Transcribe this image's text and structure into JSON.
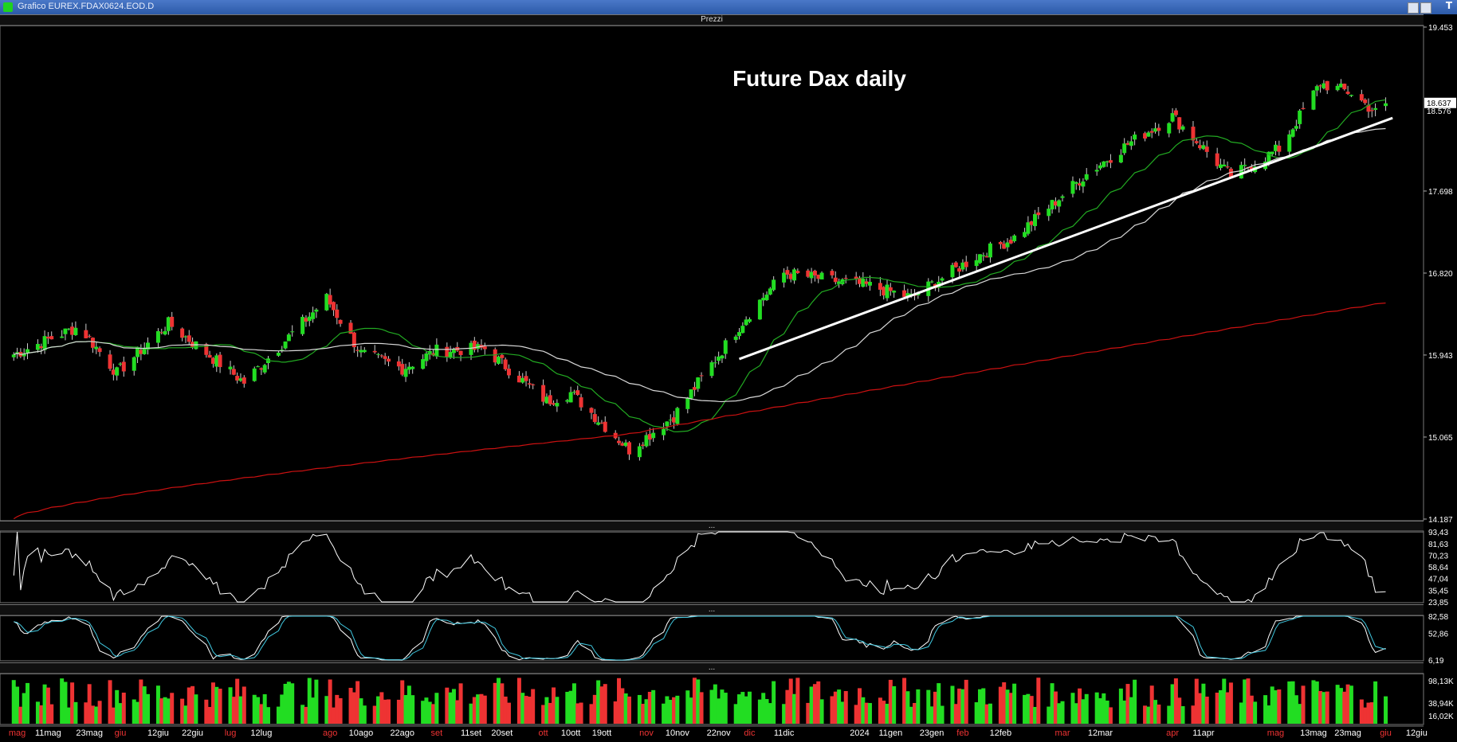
{
  "window": {
    "title": "Grafico EUREX.FDAX0624.EOD.D",
    "toolbar_label": "T"
  },
  "panels": {
    "price_title": "Prezzi",
    "sep1": "...",
    "sep2": "...",
    "sep3": "..."
  },
  "colors": {
    "up": "#22dd22",
    "down": "#ee3333",
    "ma_short": "#22aa22",
    "ma_mid": "#d8d8d8",
    "ma_long": "#cc1111",
    "trendline": "#ffffff",
    "stoch_k": "#ffffff",
    "stoch_d": "#40c8e0",
    "background": "#000000"
  },
  "chart_data": [
    {
      "type": "candlestick",
      "title": "Future Dax daily",
      "ylim": [
        14187,
        19453
      ],
      "y_ticks": [
        "19.453",
        "17.698",
        "16.820",
        "15.943",
        "15.065",
        "14.187"
      ],
      "price_labels": [
        "18.637",
        "18.576"
      ],
      "x_labels": [
        "mag",
        "11mag",
        "23mag",
        "giu",
        "12giu",
        "22giu",
        "lug",
        "12lug",
        "ago",
        "10ago",
        "22ago",
        "set",
        "11set",
        "20set",
        "ott",
        "10ott",
        "19ott",
        "nov",
        "10nov",
        "22nov",
        "dic",
        "11dic",
        "2024",
        "11gen",
        "23gen",
        "feb",
        "12feb",
        "mar",
        "12mar",
        "apr",
        "11apr",
        "mag",
        "13mag",
        "23mag",
        "giu",
        "12giu"
      ],
      "month_labels": [
        "mag",
        "giu",
        "lug",
        "ago",
        "set",
        "ott",
        "nov",
        "dic",
        "feb",
        "mar",
        "apr",
        "mag",
        "giu"
      ],
      "anchors": [
        {
          "date": "2023-05-01",
          "close": 15950
        },
        {
          "date": "2023-05-20",
          "close": 16250
        },
        {
          "date": "2023-05-31",
          "close": 15750
        },
        {
          "date": "2023-06-15",
          "close": 16280
        },
        {
          "date": "2023-07-07",
          "close": 15650
        },
        {
          "date": "2023-07-31",
          "close": 16550
        },
        {
          "date": "2023-08-10",
          "close": 15960
        },
        {
          "date": "2023-08-22",
          "close": 15800
        },
        {
          "date": "2023-09-01",
          "close": 15990
        },
        {
          "date": "2023-09-15",
          "close": 16010
        },
        {
          "date": "2023-10-03",
          "close": 15450
        },
        {
          "date": "2023-10-10",
          "close": 15540
        },
        {
          "date": "2023-10-27",
          "close": 14930
        },
        {
          "date": "2023-11-09",
          "close": 15290
        },
        {
          "date": "2023-11-30",
          "close": 16350
        },
        {
          "date": "2023-12-11",
          "close": 16820
        },
        {
          "date": "2024-01-05",
          "close": 16680
        },
        {
          "date": "2024-01-17",
          "close": 16560
        },
        {
          "date": "2024-02-05",
          "close": 17000
        },
        {
          "date": "2024-02-16",
          "close": 17200
        },
        {
          "date": "2024-03-08",
          "close": 17880
        },
        {
          "date": "2024-03-20",
          "close": 18200
        },
        {
          "date": "2024-04-02",
          "close": 18500
        },
        {
          "date": "2024-04-19",
          "close": 17850
        },
        {
          "date": "2024-05-03",
          "close": 18150
        },
        {
          "date": "2024-05-15",
          "close": 18850
        },
        {
          "date": "2024-05-24",
          "close": 18750
        },
        {
          "date": "2024-05-31",
          "close": 18540
        },
        {
          "date": "2024-06-03",
          "close": 18637
        }
      ],
      "overlays": [
        "moving average short (green)",
        "moving average mid (white)",
        "moving average long (red)",
        "trendline (white)"
      ]
    },
    {
      "type": "line",
      "name": "oscillator",
      "ylim": [
        23.85,
        93.43
      ],
      "y_ticks": [
        "93,43",
        "81,63",
        "70,23",
        "58,64",
        "47,04",
        "35,45",
        "23,85"
      ]
    },
    {
      "type": "line",
      "name": "stochastic",
      "ylim": [
        6.19,
        82.58
      ],
      "y_ticks": [
        "82,58",
        "52,86",
        "6,19"
      ]
    },
    {
      "type": "bar",
      "name": "volume",
      "y_ticks": [
        "98,13K",
        "38,94K",
        "16,02K"
      ]
    }
  ]
}
